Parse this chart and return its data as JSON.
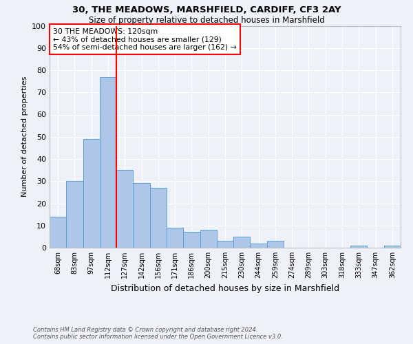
{
  "title1": "30, THE MEADOWS, MARSHFIELD, CARDIFF, CF3 2AY",
  "title2": "Size of property relative to detached houses in Marshfield",
  "xlabel": "Distribution of detached houses by size in Marshfield",
  "ylabel": "Number of detached properties",
  "categories": [
    "68sqm",
    "83sqm",
    "97sqm",
    "112sqm",
    "127sqm",
    "142sqm",
    "156sqm",
    "171sqm",
    "186sqm",
    "200sqm",
    "215sqm",
    "230sqm",
    "244sqm",
    "259sqm",
    "274sqm",
    "289sqm",
    "303sqm",
    "318sqm",
    "333sqm",
    "347sqm",
    "362sqm"
  ],
  "values": [
    14,
    30,
    49,
    77,
    35,
    29,
    27,
    9,
    7,
    8,
    3,
    5,
    2,
    3,
    0,
    0,
    0,
    0,
    1,
    0,
    1
  ],
  "bar_color": "#aec6e8",
  "bar_edgecolor": "#5a9fd4",
  "ref_line_x": 3.5,
  "ref_line_color": "red",
  "annotation_text": "30 THE MEADOWS: 120sqm\n← 43% of detached houses are smaller (129)\n54% of semi-detached houses are larger (162) →",
  "annotation_box_color": "white",
  "annotation_box_edgecolor": "red",
  "ylim": [
    0,
    100
  ],
  "yticks": [
    0,
    10,
    20,
    30,
    40,
    50,
    60,
    70,
    80,
    90,
    100
  ],
  "footer1": "Contains HM Land Registry data © Crown copyright and database right 2024.",
  "footer2": "Contains public sector information licensed under the Open Government Licence v3.0.",
  "background_color": "#eef2f8",
  "grid_color": "white"
}
